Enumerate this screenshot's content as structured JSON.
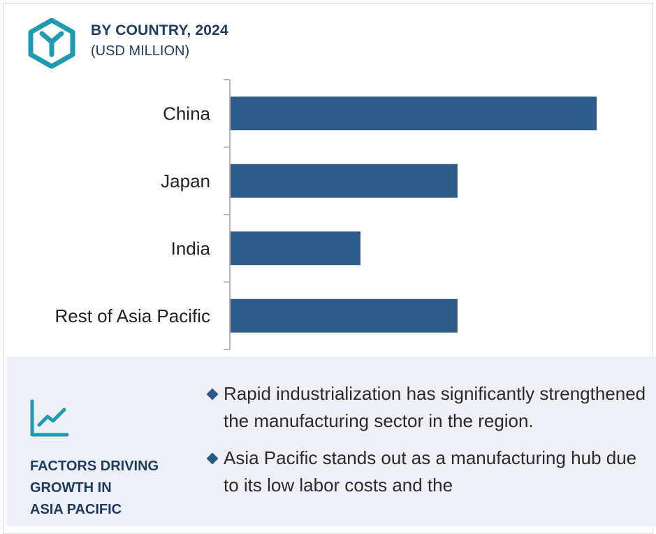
{
  "header": {
    "title": "BY COUNTRY, 2024",
    "subtitle": "(USD MILLION)"
  },
  "icons": {
    "logo": "hexagon-logo-icon",
    "factors": "trend-line-icon"
  },
  "colors": {
    "bar": "#2d5b8a",
    "accent": "#1f3b60",
    "icon": "#1e9bb0",
    "panel": "#eef0f5"
  },
  "chart_data": {
    "type": "bar",
    "orientation": "horizontal",
    "categories": [
      "China",
      "Japan",
      "India",
      "Rest of Asia Pacific"
    ],
    "values": [
      100,
      62,
      35.5,
      62
    ],
    "title": "BY COUNTRY, 2024",
    "xlabel": "",
    "ylabel": "",
    "xlim": [
      0,
      100
    ],
    "grid": false,
    "legend": "none"
  },
  "factors": {
    "title_lines": [
      "FACTORS DRIVING",
      "GROWTH IN",
      "ASIA PACIFIC"
    ],
    "bullets": [
      "Rapid industrialization has significantly strengthened the manufacturing sector in the region.",
      "Asia Pacific stands out as a manufacturing hub due to its low labor costs and the"
    ]
  }
}
